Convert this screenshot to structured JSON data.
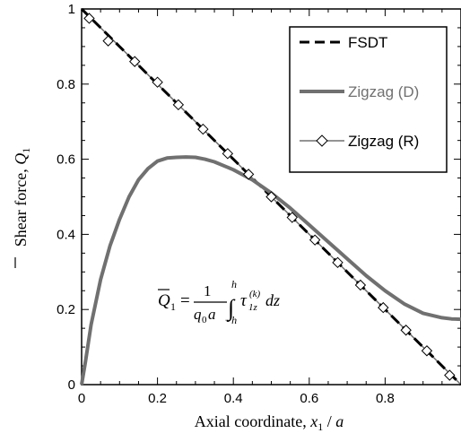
{
  "chart_data": {
    "type": "line",
    "xlabel_text": "Axial coordinate, ",
    "xlabel_var": "x",
    "xlabel_sub": "1",
    "xlabel_rest": " / ",
    "xlabel_den": "a",
    "ylabel_text": "Shear force, ",
    "ylabel_var": "Q",
    "ylabel_sub": "1",
    "xlim": [
      0,
      1
    ],
    "ylim": [
      0,
      1
    ],
    "x_ticks": [
      0,
      0.2,
      0.4,
      0.6,
      0.8
    ],
    "x_tick_labels": [
      "0",
      "0.2",
      "0.4",
      "0.6",
      "0.8"
    ],
    "y_ticks": [
      0,
      0.2,
      0.4,
      0.6,
      0.8,
      1
    ],
    "y_tick_labels": [
      "0",
      "0.2",
      "0.4",
      "0.6",
      "0.8",
      "1"
    ],
    "legend_position": "top-right",
    "series": [
      {
        "name": "FSDT",
        "style": "dashed",
        "color": "#000000",
        "x": [
          0,
          0.1,
          0.2,
          0.3,
          0.4,
          0.5,
          0.6,
          0.7,
          0.8,
          0.9,
          1.0
        ],
        "y": [
          1.0,
          0.9,
          0.8,
          0.7,
          0.6,
          0.5,
          0.4,
          0.3,
          0.2,
          0.1,
          0.0
        ]
      },
      {
        "name": "Zigzag (D)",
        "style": "solid",
        "color": "#707070",
        "x": [
          0,
          0.01,
          0.025,
          0.05,
          0.075,
          0.1,
          0.125,
          0.15,
          0.175,
          0.2,
          0.225,
          0.25,
          0.275,
          0.3,
          0.325,
          0.35,
          0.4,
          0.45,
          0.5,
          0.55,
          0.6,
          0.65,
          0.7,
          0.75,
          0.8,
          0.85,
          0.9,
          0.95,
          0.975,
          1.0
        ],
        "y": [
          0.0,
          0.06,
          0.16,
          0.28,
          0.37,
          0.44,
          0.5,
          0.545,
          0.575,
          0.595,
          0.603,
          0.605,
          0.606,
          0.605,
          0.6,
          0.593,
          0.572,
          0.545,
          0.51,
          0.47,
          0.425,
          0.38,
          0.335,
          0.29,
          0.25,
          0.215,
          0.19,
          0.178,
          0.175,
          0.174
        ]
      },
      {
        "name": "Zigzag (R)",
        "style": "solid-markers",
        "marker": "diamond",
        "color": "#707070",
        "x": [
          0.0,
          0.1,
          0.2,
          0.3,
          0.4,
          0.5,
          0.6,
          0.7,
          0.8,
          0.9,
          1.0
        ],
        "y": [
          1.0,
          0.9,
          0.8,
          0.7,
          0.6,
          0.5,
          0.4,
          0.3,
          0.2,
          0.1,
          0.0
        ],
        "marker_x": [
          0.02,
          0.07,
          0.14,
          0.2,
          0.255,
          0.32,
          0.385,
          0.44,
          0.5,
          0.555,
          0.615,
          0.675,
          0.735,
          0.795,
          0.855,
          0.91,
          0.97
        ],
        "marker_y": [
          0.975,
          0.915,
          0.86,
          0.805,
          0.745,
          0.68,
          0.615,
          0.56,
          0.5,
          0.445,
          0.385,
          0.325,
          0.265,
          0.205,
          0.145,
          0.09,
          0.025
        ]
      }
    ],
    "annotation": {
      "lhs_var": "Q",
      "lhs_sub": "1",
      "equals": "=",
      "frac_num": "1",
      "frac_den_var": "q",
      "frac_den_sub": "0",
      "frac_den_a": "a",
      "int_upper": "h",
      "int_lower": "−h",
      "integrand_var": "τ",
      "integrand_sub": "1z",
      "integrand_sup": "(k)",
      "diff": "dz"
    }
  }
}
